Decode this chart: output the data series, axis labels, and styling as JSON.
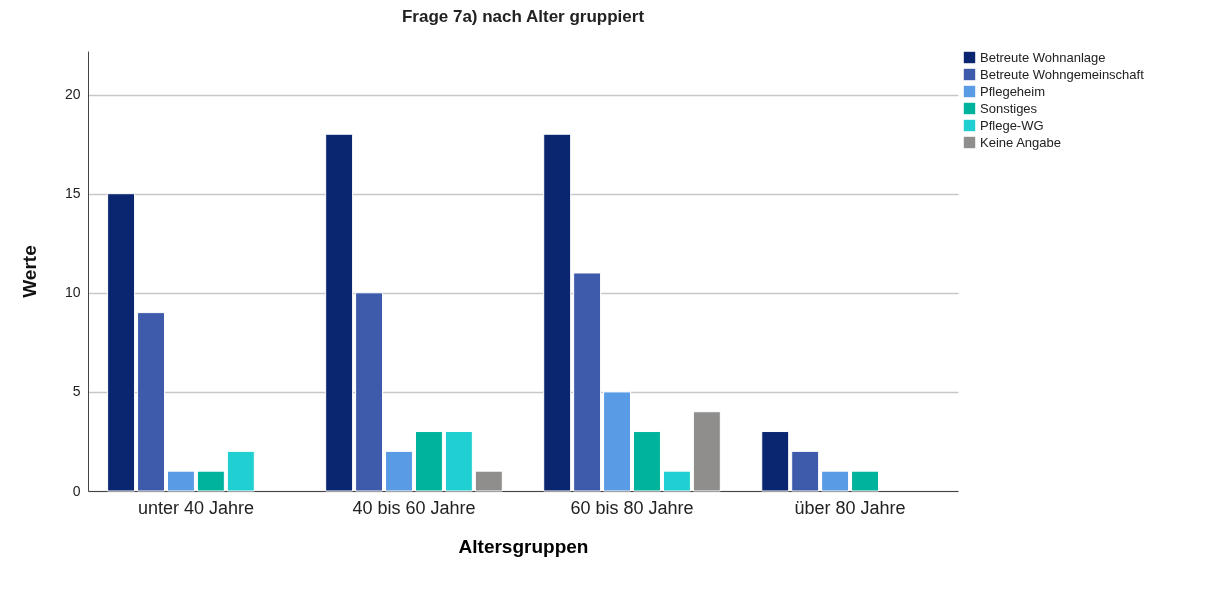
{
  "chart_data": {
    "type": "bar",
    "title": "Frage 7a) nach Alter gruppiert",
    "xlabel": "Altersgruppen",
    "ylabel": "Werte",
    "categories": [
      "unter 40 Jahre",
      "40 bis 60 Jahre",
      "60 bis 80 Jahre",
      "über 80 Jahre"
    ],
    "series": [
      {
        "name": "Betreute Wohnanlage",
        "color": "#0b2670",
        "values": [
          15,
          18,
          18,
          3
        ]
      },
      {
        "name": "Betreute Wohngemeinschaft",
        "color": "#3e5bab",
        "values": [
          9,
          10,
          11,
          2
        ]
      },
      {
        "name": "Pflegeheim",
        "color": "#5a9be6",
        "values": [
          1,
          2,
          5,
          1
        ]
      },
      {
        "name": "Sonstiges",
        "color": "#00b39c",
        "values": [
          1,
          3,
          3,
          1
        ]
      },
      {
        "name": "Pflege-WG",
        "color": "#1fcfd1",
        "values": [
          2,
          3,
          1,
          null
        ]
      },
      {
        "name": "Keine Angabe",
        "color": "#908d8d",
        "values": [
          null,
          1,
          4,
          null
        ]
      }
    ],
    "ylim": [
      0,
      22.2
    ],
    "yticks": [
      0,
      5,
      10,
      15,
      20
    ],
    "grid": "y",
    "legend": "top right"
  }
}
